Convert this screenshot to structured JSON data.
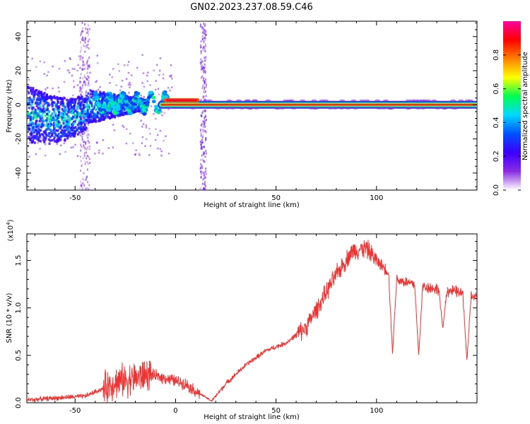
{
  "figure": {
    "title": "GN02.2023.237.08.59.C46"
  },
  "chart_data": [
    {
      "type": "heatmap",
      "xlabel": "Height of straight line (km)",
      "ylabel": "Frequency (Hz)",
      "xlim": [
        -74,
        150
      ],
      "ylim": [
        -50,
        49
      ],
      "xticks": [
        -50,
        0,
        50,
        100
      ],
      "yticks": [
        -40,
        -20,
        0,
        20,
        40
      ],
      "colorbar": {
        "label": "Normalized spectral amplitude",
        "range": [
          0.0,
          1.0
        ],
        "ticks": [
          0.0,
          0.2,
          0.4,
          0.6,
          0.8
        ],
        "colormap": [
          "#ffffff",
          "#8a2be2",
          "#3a00ff",
          "#0050ff",
          "#00d8ff",
          "#00ff50",
          "#ffff00",
          "#ff8000",
          "#ff0000",
          "#ff00a0"
        ]
      },
      "carrier_line": {
        "x": [
          -7,
          150
        ],
        "frequency": 0,
        "amplitude": 0.95
      },
      "features": [
        {
          "name": "noisy band",
          "x": [
            -74,
            -15
          ],
          "frequency": [
            -16,
            16
          ],
          "amplitude": [
            0.2,
            0.6
          ]
        },
        {
          "name": "onset ripple",
          "x": [
            -40,
            -4
          ],
          "frequency": [
            -3,
            7
          ],
          "amplitude": [
            0.3,
            0.55
          ]
        },
        {
          "name": "carrier lock",
          "x": [
            -6,
            12
          ],
          "frequency": [
            0,
            3
          ],
          "amplitude": [
            0.8,
            1.0
          ]
        },
        {
          "name": "broadband streak",
          "x": [
            -48,
            -43
          ],
          "frequency": [
            -50,
            49
          ],
          "amplitude": [
            0.05,
            0.15
          ]
        },
        {
          "name": "broadband streak",
          "x": [
            12,
            15
          ],
          "frequency": [
            -50,
            49
          ],
          "amplitude": [
            0.05,
            0.2
          ]
        }
      ]
    },
    {
      "type": "line",
      "xlabel": "Height of straight line (km)",
      "ylabel": "SNR (10 * v/v)",
      "y_multiplier": "(x10^4)",
      "xlim": [
        -74,
        150
      ],
      "ylim": [
        0.0,
        1.78
      ],
      "xticks": [
        -50,
        0,
        50,
        100
      ],
      "yticks": [
        0.0,
        0.5,
        1.0,
        1.5
      ],
      "series": [
        {
          "color": "#ee3333",
          "x": [
            -74,
            -60,
            -45,
            -36,
            -30,
            -20,
            -14,
            -5,
            5,
            10,
            18,
            25,
            35,
            45,
            55,
            65,
            72,
            80,
            88,
            95,
            100,
            105,
            110,
            120,
            130,
            140,
            145,
            150
          ],
          "y": [
            0.03,
            0.05,
            0.07,
            0.15,
            0.22,
            0.26,
            0.3,
            0.26,
            0.2,
            0.12,
            0.02,
            0.2,
            0.4,
            0.55,
            0.63,
            0.8,
            1.05,
            1.35,
            1.6,
            1.63,
            1.5,
            1.4,
            1.3,
            1.24,
            1.2,
            1.17,
            1.13,
            1.1
          ],
          "dips": [
            {
              "x": 108,
              "y": 0.52
            },
            {
              "x": 121,
              "y": 0.5
            },
            {
              "x": 133,
              "y": 0.78
            },
            {
              "x": 145,
              "y": 0.44
            }
          ]
        }
      ]
    }
  ]
}
